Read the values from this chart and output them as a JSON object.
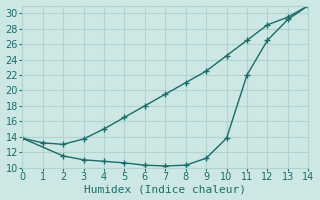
{
  "xlabel": "Humidex (Indice chaleur)",
  "xlim": [
    0,
    14
  ],
  "ylim": [
    10,
    31
  ],
  "yticks": [
    10,
    12,
    14,
    16,
    18,
    20,
    22,
    24,
    26,
    28,
    30
  ],
  "xticks": [
    0,
    1,
    2,
    3,
    4,
    5,
    6,
    7,
    8,
    9,
    10,
    11,
    12,
    13,
    14
  ],
  "bg_color": "#cde8e4",
  "grid_color": "#b0d4cf",
  "line_color": "#1a6b6b",
  "series1_x": [
    0,
    1,
    2,
    3,
    4,
    5,
    6,
    7,
    8,
    9,
    10,
    11,
    12,
    13,
    14
  ],
  "series1_y": [
    13.8,
    13.2,
    13.0,
    13.7,
    15.0,
    16.5,
    18.0,
    19.5,
    21.0,
    22.5,
    24.5,
    26.5,
    28.5,
    29.5,
    31.0
  ],
  "series2_x": [
    0,
    2,
    3,
    4,
    5,
    6,
    7,
    8,
    9,
    10,
    11,
    12,
    13,
    14
  ],
  "series2_y": [
    13.8,
    11.5,
    11.0,
    10.8,
    10.6,
    10.3,
    10.2,
    10.3,
    11.2,
    13.8,
    22.0,
    26.5,
    29.2,
    31.0
  ],
  "tick_fontsize": 7,
  "label_fontsize": 8
}
